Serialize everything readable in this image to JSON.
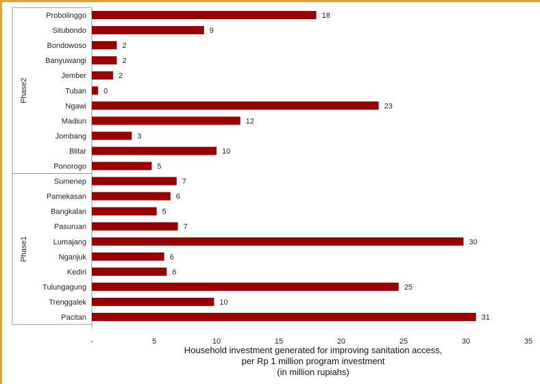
{
  "chart_data": {
    "type": "bar",
    "orientation": "horizontal",
    "groups": [
      {
        "label": "Phase2",
        "categories": [
          "Probolinggo",
          "Situbondo",
          "Bondowoso",
          "Banyuwangi",
          "Jember",
          "Tuban",
          "Ngawi",
          "Madiun",
          "Jombang",
          "Blitar",
          "Ponorogo"
        ],
        "values": [
          18,
          9,
          2,
          2,
          2,
          0,
          23,
          12,
          3,
          10,
          5
        ],
        "plot_values": [
          18,
          9,
          2,
          2,
          1.7,
          0.5,
          23,
          11.9,
          3.2,
          10,
          4.8
        ]
      },
      {
        "label": "Phase1",
        "categories": [
          "Sumenep",
          "Pamekasan",
          "Bangkalan",
          "Pasuruan",
          "Lumajang",
          "Nganjuk",
          "Kediri",
          "Tulungagung",
          "Trenggalek",
          "Pacitan"
        ],
        "values": [
          7,
          6,
          5,
          7,
          30,
          6,
          6,
          25,
          10,
          31
        ],
        "plot_values": [
          6.8,
          6.3,
          5.2,
          6.9,
          29.8,
          5.8,
          6.0,
          24.6,
          9.8,
          30.8
        ]
      }
    ],
    "x_ticks": [
      "-",
      "5",
      "10",
      "15",
      "20",
      "25",
      "30",
      "35"
    ],
    "xlim": [
      0,
      35
    ],
    "xlabel_lines": [
      "Household investment generated for improving sanitation access,",
      "per Rp 1 million program investment",
      "(in million rupiahs)"
    ],
    "bar_color": "#990000",
    "grid": false
  }
}
